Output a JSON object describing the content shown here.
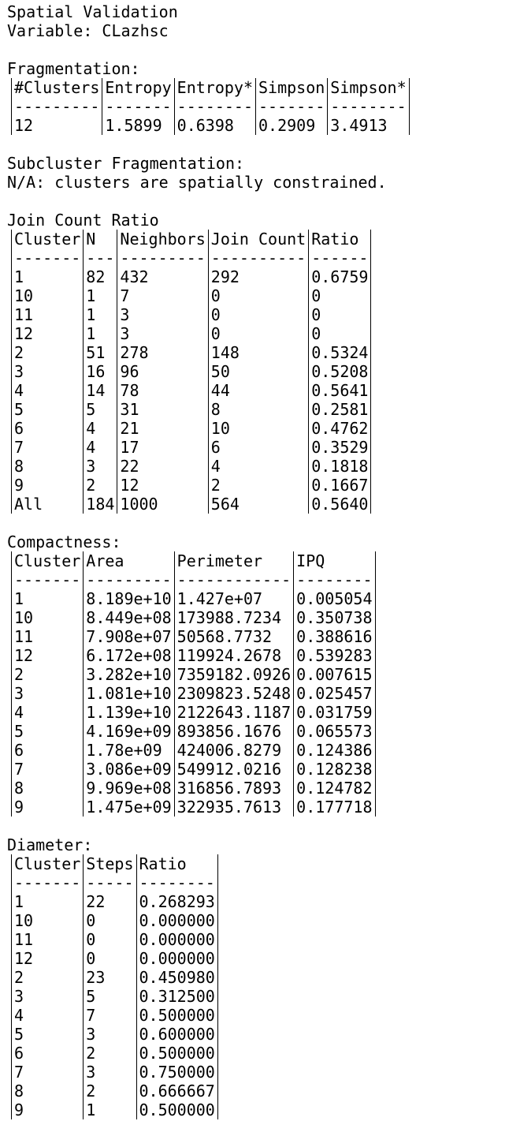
{
  "header": {
    "title": "Spatial Validation",
    "variable": "Variable: CLazhsc"
  },
  "fragmentation": {
    "label": "Fragmentation:",
    "headers": [
      "#Clusters",
      "Entropy",
      "Entropy*",
      "Simpson",
      "Simpson*"
    ],
    "dashes": [
      "---------",
      "-------",
      "--------",
      "-------",
      "--------"
    ],
    "rows": [
      [
        "12",
        "1.5899",
        "0.6398",
        "0.2909",
        "3.4913"
      ]
    ]
  },
  "subcluster": {
    "label": "Subcluster Fragmentation:",
    "note": "N/A: clusters are spatially constrained."
  },
  "join_count": {
    "label": "Join Count Ratio",
    "headers": [
      "Cluster",
      "N",
      "Neighbors",
      "Join Count",
      "Ratio"
    ],
    "dashes": [
      "-------",
      "---",
      "---------",
      "----------",
      "------"
    ],
    "rows": [
      [
        "1",
        "82",
        "432",
        "292",
        "0.6759"
      ],
      [
        "10",
        "1",
        "7",
        "0",
        "0"
      ],
      [
        "11",
        "1",
        "3",
        "0",
        "0"
      ],
      [
        "12",
        "1",
        "3",
        "0",
        "0"
      ],
      [
        "2",
        "51",
        "278",
        "148",
        "0.5324"
      ],
      [
        "3",
        "16",
        "96",
        "50",
        "0.5208"
      ],
      [
        "4",
        "14",
        "78",
        "44",
        "0.5641"
      ],
      [
        "5",
        "5",
        "31",
        "8",
        "0.2581"
      ],
      [
        "6",
        "4",
        "21",
        "10",
        "0.4762"
      ],
      [
        "7",
        "4",
        "17",
        "6",
        "0.3529"
      ],
      [
        "8",
        "3",
        "22",
        "4",
        "0.1818"
      ],
      [
        "9",
        "2",
        "12",
        "2",
        "0.1667"
      ],
      [
        "All",
        "184",
        "1000",
        "564",
        "0.5640"
      ]
    ]
  },
  "compactness": {
    "label": "Compactness:",
    "headers": [
      "Cluster",
      "Area",
      "Perimeter",
      "IPQ"
    ],
    "dashes": [
      "-------",
      "---------",
      "------------",
      "--------"
    ],
    "rows": [
      [
        "1",
        "8.189e+10",
        "1.427e+07",
        "0.005054"
      ],
      [
        "10",
        "8.449e+08",
        "173988.7234",
        "0.350738"
      ],
      [
        "11",
        "7.908e+07",
        "50568.7732",
        "0.388616"
      ],
      [
        "12",
        "6.172e+08",
        "119924.2678",
        "0.539283"
      ],
      [
        "2",
        "3.282e+10",
        "7359182.0926",
        "0.007615"
      ],
      [
        "3",
        "1.081e+10",
        "2309823.5248",
        "0.025457"
      ],
      [
        "4",
        "1.139e+10",
        "2122643.1187",
        "0.031759"
      ],
      [
        "5",
        "4.169e+09",
        "893856.1676",
        "0.065573"
      ],
      [
        "6",
        "1.78e+09",
        "424006.8279",
        "0.124386"
      ],
      [
        "7",
        "3.086e+09",
        "549912.0216",
        "0.128238"
      ],
      [
        "8",
        "9.969e+08",
        "316856.7893",
        "0.124782"
      ],
      [
        "9",
        "1.475e+09",
        "322935.7613",
        "0.177718"
      ]
    ]
  },
  "diameter": {
    "label": "Diameter:",
    "headers": [
      "Cluster",
      "Steps",
      "Ratio"
    ],
    "dashes": [
      "-------",
      "-----",
      "--------"
    ],
    "rows": [
      [
        "1",
        "22",
        "0.268293"
      ],
      [
        "10",
        "0",
        "0.000000"
      ],
      [
        "11",
        "0",
        "0.000000"
      ],
      [
        "12",
        "0",
        "0.000000"
      ],
      [
        "2",
        "23",
        "0.450980"
      ],
      [
        "3",
        "5",
        "0.312500"
      ],
      [
        "4",
        "7",
        "0.500000"
      ],
      [
        "5",
        "3",
        "0.600000"
      ],
      [
        "6",
        "2",
        "0.500000"
      ],
      [
        "7",
        "3",
        "0.750000"
      ],
      [
        "8",
        "2",
        "0.666667"
      ],
      [
        "9",
        "1",
        "0.500000"
      ]
    ]
  }
}
